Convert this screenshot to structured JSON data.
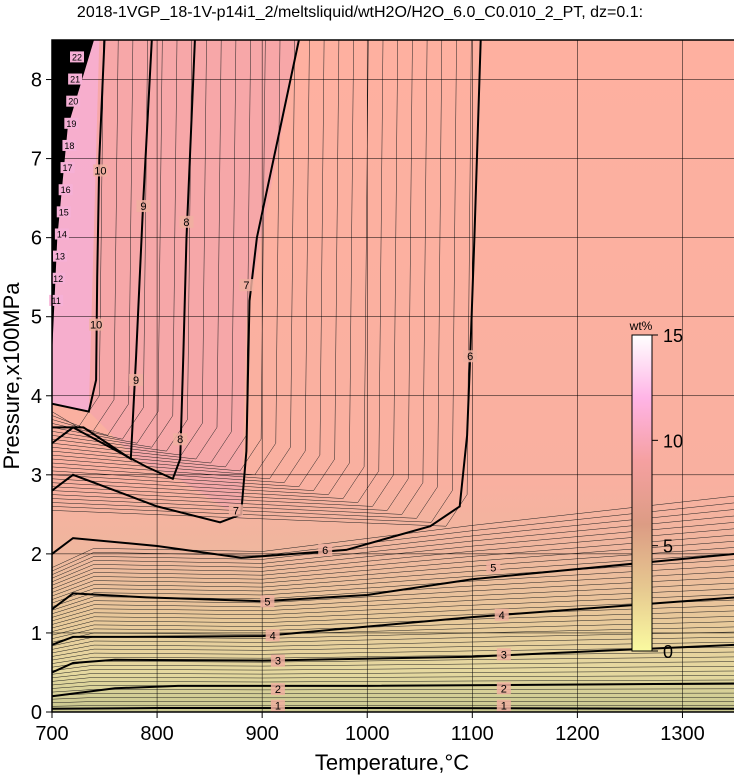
{
  "chart_data": {
    "type": "heatmap",
    "title": "2018-1VGP_18-1V-p14i1_2/meltsliquid/wtH2O/H2O_6.0_C0.010_2_PT, dz=0.1:",
    "xlabel": "Temperature,°C",
    "ylabel": "Pressure,x100MPa",
    "xlim": [
      700,
      1350
    ],
    "ylim": [
      0,
      8.5
    ],
    "x_ticks": [
      "700",
      "800",
      "900",
      "1000",
      "1100",
      "1200",
      "1300"
    ],
    "y_ticks": [
      "0",
      "1",
      "2",
      "3",
      "4",
      "5",
      "6",
      "7",
      "8"
    ],
    "grid": true,
    "colorbar": {
      "title": "wt%",
      "ticks": [
        "0",
        "5",
        "10",
        "15"
      ],
      "range": [
        0,
        15
      ],
      "colors": [
        "#fafaa0",
        "#e6c890",
        "#dc9c84",
        "#f5a0a0",
        "#ffb4e6",
        "#ffffff"
      ]
    },
    "labelled_contours": [
      {
        "level": "1",
        "points": [
          [
            700,
            0.04
          ],
          [
            800,
            0.05
          ],
          [
            1000,
            0.05
          ],
          [
            1350,
            0.04
          ]
        ],
        "labels": [
          [
            915,
            0.08
          ],
          [
            1130,
            0.08
          ]
        ]
      },
      {
        "level": "2",
        "points": [
          [
            700,
            0.2
          ],
          [
            760,
            0.3
          ],
          [
            820,
            0.33
          ],
          [
            1000,
            0.33
          ],
          [
            1350,
            0.36
          ]
        ],
        "labels": [
          [
            915,
            0.29
          ],
          [
            1130,
            0.3
          ]
        ]
      },
      {
        "level": "3",
        "points": [
          [
            700,
            0.5
          ],
          [
            720,
            0.62
          ],
          [
            760,
            0.66
          ],
          [
            900,
            0.65
          ],
          [
            1100,
            0.7
          ],
          [
            1350,
            0.85
          ]
        ],
        "labels": [
          [
            915,
            0.65
          ],
          [
            1130,
            0.73
          ]
        ]
      },
      {
        "level": "4",
        "points": [
          [
            700,
            0.85
          ],
          [
            720,
            0.95
          ],
          [
            770,
            0.95
          ],
          [
            900,
            0.96
          ],
          [
            1100,
            1.2
          ],
          [
            1350,
            1.45
          ]
        ],
        "labels": [
          [
            910,
            0.97
          ],
          [
            1128,
            1.23
          ]
        ]
      },
      {
        "level": "5",
        "points": [
          [
            700,
            1.3
          ],
          [
            720,
            1.5
          ],
          [
            790,
            1.45
          ],
          [
            900,
            1.4
          ],
          [
            1000,
            1.48
          ],
          [
            1100,
            1.68
          ],
          [
            1350,
            2.0
          ]
        ],
        "labels": [
          [
            905,
            1.4
          ],
          [
            1120,
            1.83
          ]
        ]
      },
      {
        "level": "6",
        "points": [
          [
            700,
            2.0
          ],
          [
            720,
            2.2
          ],
          [
            800,
            2.1
          ],
          [
            880,
            1.95
          ],
          [
            980,
            2.05
          ],
          [
            1060,
            2.35
          ],
          [
            1088,
            2.6
          ],
          [
            1095,
            3.5
          ],
          [
            1098,
            4.5
          ],
          [
            1102,
            6
          ],
          [
            1108,
            8.5
          ]
        ],
        "labels": [
          [
            960,
            2.05
          ],
          [
            1098,
            4.5
          ]
        ]
      },
      {
        "level": "7",
        "points": [
          [
            700,
            2.8
          ],
          [
            720,
            3.0
          ],
          [
            800,
            2.6
          ],
          [
            860,
            2.4
          ],
          [
            880,
            2.5
          ],
          [
            885,
            3.3
          ],
          [
            888,
            5.2
          ],
          [
            895,
            6.0
          ],
          [
            935,
            8.5
          ]
        ],
        "labels": [
          [
            875,
            2.55
          ],
          [
            885,
            5.4
          ]
        ]
      },
      {
        "level": "8",
        "points": [
          [
            700,
            3.4
          ],
          [
            720,
            3.6
          ],
          [
            790,
            3.1
          ],
          [
            815,
            2.95
          ],
          [
            822,
            3.2
          ],
          [
            825,
            4.5
          ],
          [
            828,
            6.0
          ],
          [
            836,
            8.5
          ]
        ],
        "labels": [
          [
            822,
            3.45
          ],
          [
            828,
            6.2
          ]
        ]
      },
      {
        "level": "9",
        "points": [
          [
            700,
            3.6
          ],
          [
            730,
            3.6
          ],
          [
            775,
            3.2
          ],
          [
            780,
            4.5
          ],
          [
            787,
            6.5
          ],
          [
            795,
            8.5
          ]
        ],
        "labels": [
          [
            780,
            4.2
          ],
          [
            787,
            6.4
          ]
        ]
      },
      {
        "level": "10",
        "points": [
          [
            700,
            3.9
          ],
          [
            735,
            3.8
          ],
          [
            742,
            4.2
          ],
          [
            743,
            5.5
          ],
          [
            745,
            7.0
          ],
          [
            750,
            8.5
          ]
        ],
        "labels": [
          [
            742,
            4.9
          ],
          [
            746,
            6.85
          ]
        ]
      }
    ],
    "steep_contour_labels": [
      "11",
      "12",
      "13",
      "14",
      "15",
      "16",
      "17",
      "18",
      "19",
      "20",
      "21",
      "22"
    ]
  }
}
